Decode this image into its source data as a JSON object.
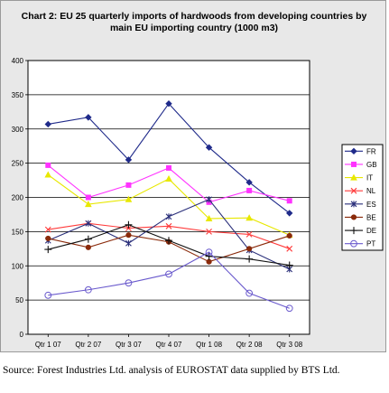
{
  "chart_data": {
    "type": "line",
    "title": "Chart 2: EU 25 quarterly imports of hardwoods from developing countries by main EU importing country (1000 m3)",
    "xlabel": "",
    "ylabel": "",
    "categories": [
      "Qtr 1 07",
      "Qtr 2 07",
      "Qtr 3 07",
      "Qtr 4 07",
      "Qtr 1 08",
      "Qtr 2 08",
      "Qtr 3 08"
    ],
    "ylim": [
      0,
      400
    ],
    "yticks": [
      0,
      50,
      100,
      150,
      200,
      250,
      300,
      350,
      400
    ],
    "grid": true,
    "legend_position": "right",
    "series": [
      {
        "name": "FR",
        "color": "#1f2a8a",
        "marker": "diamond",
        "values": [
          307,
          317,
          255,
          337,
          273,
          222,
          177
        ]
      },
      {
        "name": "GB",
        "color": "#ff33ff",
        "marker": "square",
        "values": [
          247,
          200,
          218,
          243,
          193,
          210,
          195
        ]
      },
      {
        "name": "IT",
        "color": "#e8e800",
        "marker": "triangle",
        "values": [
          233,
          190,
          197,
          227,
          169,
          170,
          145
        ]
      },
      {
        "name": "NL",
        "color": "#ff3b3b",
        "marker": "x",
        "values": [
          153,
          162,
          155,
          158,
          150,
          146,
          125
        ]
      },
      {
        "name": "ES",
        "color": "#2a2f7a",
        "marker": "asterisk",
        "values": [
          137,
          162,
          133,
          172,
          197,
          123,
          95
        ]
      },
      {
        "name": "BE",
        "color": "#8a2a0a",
        "marker": "dot",
        "values": [
          140,
          127,
          145,
          135,
          106,
          125,
          144
        ]
      },
      {
        "name": "DE",
        "color": "#111111",
        "marker": "plus",
        "values": [
          124,
          139,
          160,
          137,
          114,
          110,
          101
        ]
      },
      {
        "name": "PT",
        "color": "#6a5acd",
        "marker": "circle",
        "values": [
          57,
          65,
          75,
          88,
          120,
          60,
          38
        ]
      }
    ]
  },
  "source_note": "Source: Forest Industries Ltd. analysis of EUROSTAT data supplied by BTS Ltd."
}
